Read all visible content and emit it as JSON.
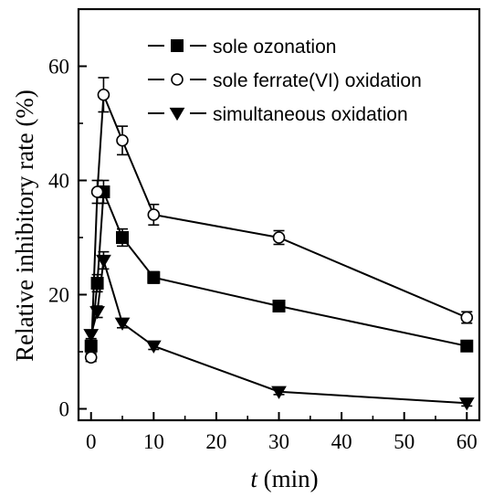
{
  "chart_data": {
    "type": "line",
    "xlabel_italic": "t",
    "xlabel_rest": " (min)",
    "ylabel": "Relative inhibitory rate (%)",
    "xlim": [
      -2,
      62
    ],
    "ylim": [
      -2,
      70
    ],
    "xticks": [
      0,
      10,
      20,
      30,
      40,
      50,
      60
    ],
    "yticks": [
      0,
      20,
      40,
      60
    ],
    "legend_position": "top-right",
    "series": [
      {
        "name": "sole ozonation",
        "marker": "filled-square",
        "x": [
          0,
          1,
          2,
          5,
          10,
          30,
          60
        ],
        "y": [
          11,
          22,
          38,
          30,
          23,
          18,
          11
        ],
        "err": [
          1,
          1.5,
          2,
          1.5,
          1,
          0.8,
          0.7
        ]
      },
      {
        "name": "sole ferrate(VI) oxidation",
        "marker": "open-circle",
        "x": [
          0,
          1,
          2,
          5,
          10,
          30,
          60
        ],
        "y": [
          9,
          38,
          55,
          47,
          34,
          30,
          16
        ],
        "err": [
          0.7,
          2,
          3,
          2.5,
          1.8,
          1.2,
          1
        ]
      },
      {
        "name": "simultaneous oxidation",
        "marker": "filled-triangle-down",
        "x": [
          0,
          1,
          2,
          5,
          10,
          30,
          60
        ],
        "y": [
          13,
          17,
          26,
          15,
          11,
          3,
          1
        ],
        "err": [
          0.7,
          1,
          1.5,
          0.8,
          0.6,
          0.5,
          0.5
        ]
      }
    ]
  }
}
